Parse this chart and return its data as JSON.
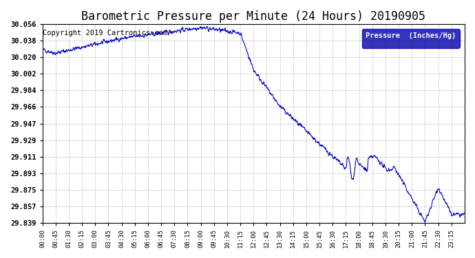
{
  "title": "Barometric Pressure per Minute (24 Hours) 20190905",
  "copyright": "Copyright 2019 Cartronics.com",
  "legend_label": "Pressure  (Inches/Hg)",
  "yticks": [
    29.839,
    29.857,
    29.875,
    29.893,
    29.911,
    29.929,
    29.947,
    29.966,
    29.984,
    30.002,
    30.02,
    30.038,
    30.056
  ],
  "xtick_labels": [
    "00:00",
    "00:45",
    "01:30",
    "02:15",
    "03:00",
    "03:45",
    "04:30",
    "05:15",
    "06:00",
    "06:45",
    "07:30",
    "08:15",
    "09:00",
    "09:45",
    "10:30",
    "11:15",
    "12:00",
    "12:45",
    "13:30",
    "14:15",
    "15:00",
    "15:45",
    "16:30",
    "17:15",
    "18:00",
    "18:45",
    "19:30",
    "20:15",
    "21:00",
    "21:45",
    "22:30",
    "23:15"
  ],
  "line_color": "#0000CC",
  "background_color": "#ffffff",
  "grid_color": "#aaaaaa",
  "legend_bg": "#0000AA",
  "legend_text_color": "#ffffff",
  "title_fontsize": 12,
  "copyright_fontsize": 7.5,
  "ymin": 29.839,
  "ymax": 30.056
}
